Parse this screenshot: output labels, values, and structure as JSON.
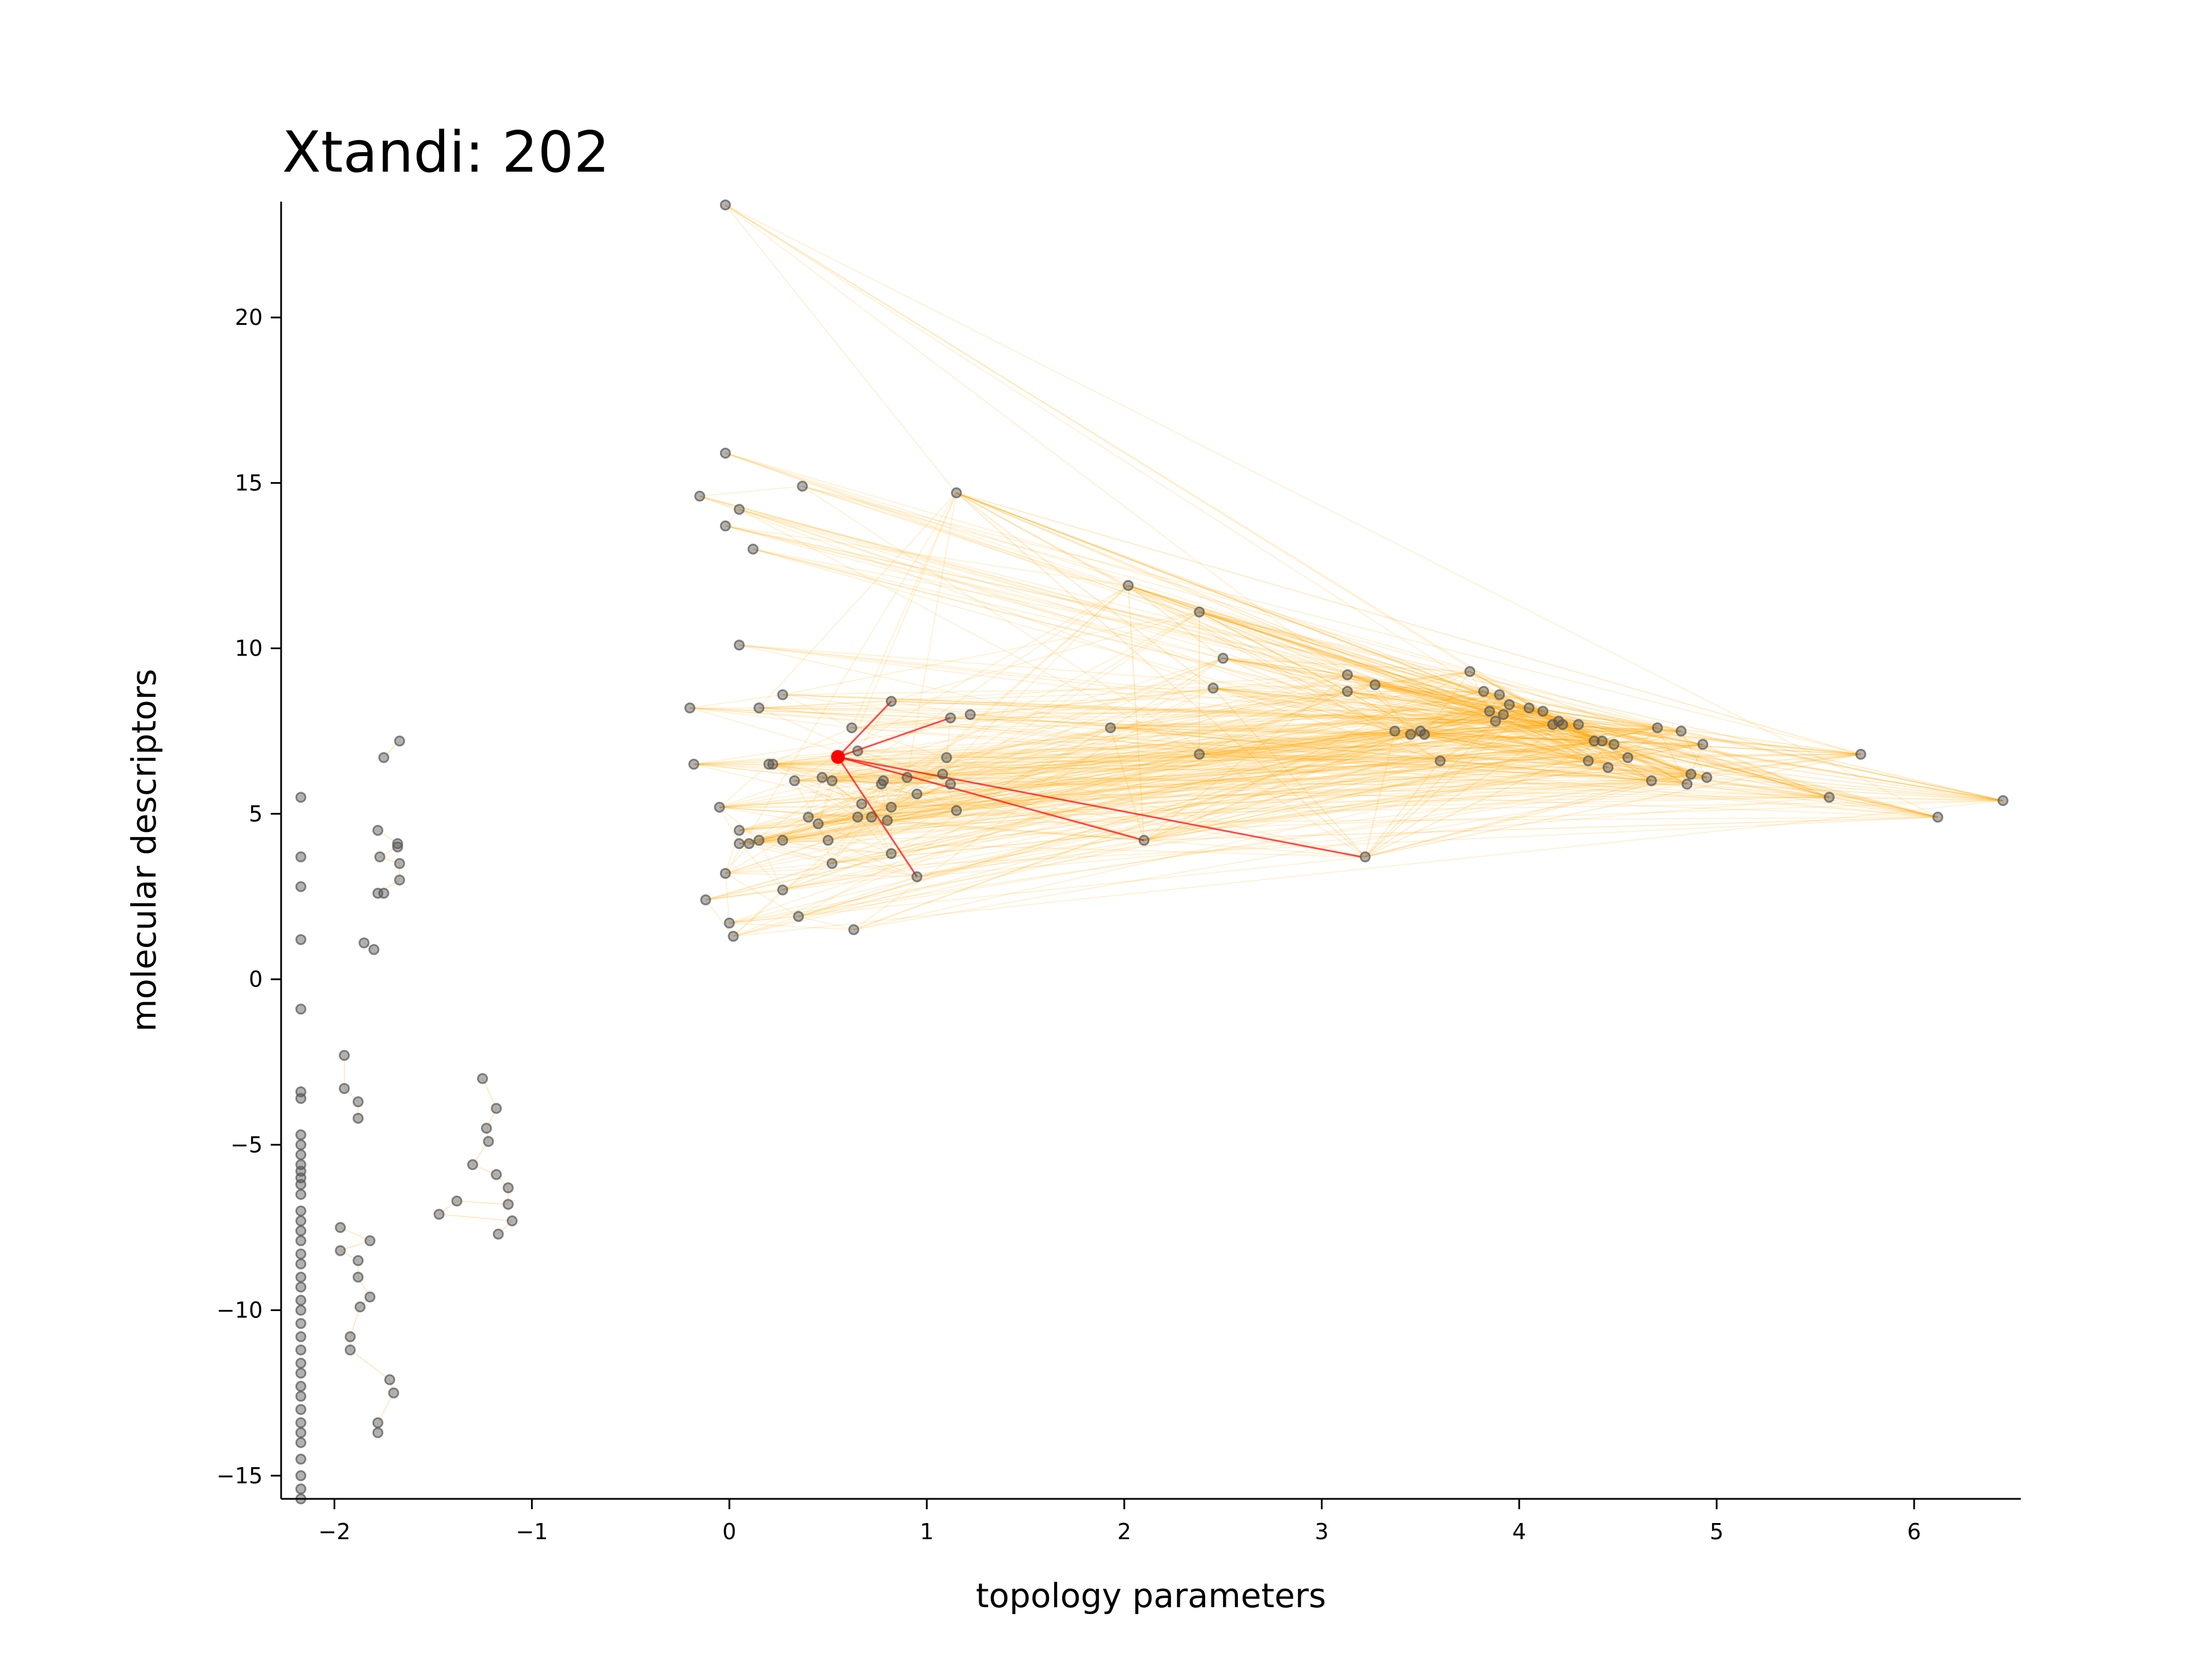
{
  "chart_data": {
    "type": "scatter",
    "title": "Xtandi: 202",
    "xlabel": "topology parameters",
    "ylabel": "molecular descriptors",
    "xlim": [
      -2.27,
      6.54
    ],
    "ylim": [
      -15.7,
      23.5
    ],
    "xticks": [
      -2,
      -1,
      0,
      1,
      2,
      3,
      4,
      5,
      6
    ],
    "yticks": [
      -15,
      -10,
      -5,
      0,
      5,
      10,
      15,
      20
    ],
    "xtick_labels": [
      "−2",
      "−1",
      "0",
      "1",
      "2",
      "3",
      "4",
      "5",
      "6"
    ],
    "ytick_labels": [
      "−15",
      "−10",
      "−5",
      "0",
      "5",
      "10",
      "15",
      "20"
    ],
    "grid": false,
    "colors": {
      "points": "#555555",
      "edges": "#ffa500",
      "highlight": "#ff0000"
    },
    "highlight": {
      "x": 0.55,
      "y": 6.72,
      "neighbors": [
        [
          0.82,
          8.4
        ],
        [
          1.12,
          7.9
        ],
        [
          0.95,
          3.1
        ],
        [
          2.1,
          4.2
        ],
        [
          3.2,
          3.7
        ]
      ]
    },
    "cluster_a": [
      [
        -0.02,
        23.4
      ],
      [
        -0.02,
        15.9
      ],
      [
        -0.15,
        14.6
      ],
      [
        0.05,
        14.2
      ],
      [
        0.37,
        14.9
      ],
      [
        -0.02,
        13.7
      ],
      [
        0.12,
        13.0
      ],
      [
        0.05,
        10.1
      ],
      [
        -0.2,
        8.2
      ],
      [
        0.15,
        8.2
      ],
      [
        0.27,
        8.6
      ],
      [
        -0.18,
        6.5
      ],
      [
        0.2,
        6.5
      ],
      [
        0.22,
        6.5
      ],
      [
        0.33,
        6.0
      ],
      [
        0.47,
        6.1
      ],
      [
        0.52,
        6.0
      ],
      [
        0.65,
        6.9
      ],
      [
        0.62,
        7.6
      ],
      [
        0.82,
        8.4
      ],
      [
        1.12,
        7.9
      ],
      [
        1.22,
        8.0
      ],
      [
        1.1,
        6.7
      ],
      [
        1.08,
        6.2
      ],
      [
        1.12,
        5.9
      ],
      [
        1.15,
        5.1
      ],
      [
        0.95,
        5.6
      ],
      [
        0.9,
        6.1
      ],
      [
        0.78,
        6.0
      ],
      [
        0.77,
        5.9
      ],
      [
        0.82,
        5.2
      ],
      [
        0.8,
        4.8
      ],
      [
        0.72,
        4.9
      ],
      [
        0.67,
        5.3
      ],
      [
        0.65,
        4.9
      ],
      [
        0.4,
        4.9
      ],
      [
        0.45,
        4.7
      ],
      [
        0.5,
        4.2
      ],
      [
        0.52,
        3.5
      ],
      [
        0.27,
        4.2
      ],
      [
        0.15,
        4.2
      ],
      [
        0.1,
        4.1
      ],
      [
        0.05,
        4.1
      ],
      [
        0.05,
        4.5
      ],
      [
        -0.05,
        5.2
      ],
      [
        -0.02,
        3.2
      ],
      [
        0.27,
        2.7
      ],
      [
        0.35,
        1.9
      ],
      [
        -0.12,
        2.4
      ],
      [
        0.0,
        1.7
      ],
      [
        0.02,
        1.3
      ],
      [
        0.63,
        1.5
      ],
      [
        0.82,
        3.8
      ],
      [
        0.95,
        3.1
      ]
    ],
    "cluster_b": [
      [
        1.15,
        14.7
      ],
      [
        2.02,
        11.9
      ],
      [
        2.38,
        11.1
      ],
      [
        2.5,
        9.7
      ],
      [
        2.45,
        8.8
      ],
      [
        1.93,
        7.6
      ],
      [
        2.38,
        6.8
      ],
      [
        2.1,
        4.2
      ],
      [
        3.22,
        3.7
      ],
      [
        3.13,
        9.2
      ],
      [
        3.13,
        8.7
      ],
      [
        3.27,
        8.9
      ],
      [
        3.37,
        7.5
      ],
      [
        3.45,
        7.4
      ],
      [
        3.5,
        7.5
      ],
      [
        3.52,
        7.4
      ],
      [
        3.6,
        6.6
      ],
      [
        3.75,
        9.3
      ],
      [
        3.82,
        8.7
      ],
      [
        3.85,
        8.1
      ],
      [
        3.88,
        7.8
      ],
      [
        3.9,
        8.6
      ],
      [
        3.92,
        8.0
      ],
      [
        3.95,
        8.3
      ],
      [
        4.05,
        8.2
      ],
      [
        4.12,
        8.1
      ],
      [
        4.17,
        7.7
      ],
      [
        4.2,
        7.8
      ],
      [
        4.22,
        7.7
      ],
      [
        4.3,
        7.7
      ],
      [
        4.35,
        6.6
      ],
      [
        4.38,
        7.2
      ],
      [
        4.42,
        7.2
      ],
      [
        4.45,
        6.4
      ],
      [
        4.48,
        7.1
      ],
      [
        4.55,
        6.7
      ],
      [
        4.67,
        6.0
      ],
      [
        4.7,
        7.6
      ],
      [
        4.82,
        7.5
      ],
      [
        4.85,
        5.9
      ],
      [
        4.87,
        6.2
      ],
      [
        4.93,
        7.1
      ],
      [
        4.95,
        6.1
      ],
      [
        5.57,
        5.5
      ],
      [
        5.73,
        6.8
      ],
      [
        6.12,
        4.9
      ],
      [
        6.45,
        5.4
      ]
    ],
    "cluster_c": [
      [
        -2.17,
        5.5
      ],
      [
        -2.17,
        3.7
      ],
      [
        -2.17,
        2.8
      ],
      [
        -2.17,
        1.2
      ],
      [
        -2.17,
        -0.9
      ],
      [
        -2.17,
        -3.4
      ],
      [
        -2.17,
        -3.6
      ],
      [
        -2.17,
        -4.7
      ],
      [
        -2.17,
        -5.0
      ],
      [
        -2.17,
        -5.3
      ],
      [
        -2.17,
        -5.6
      ],
      [
        -2.17,
        -5.8
      ],
      [
        -2.17,
        -6.0
      ],
      [
        -2.17,
        -6.2
      ],
      [
        -2.17,
        -6.5
      ],
      [
        -2.17,
        -7.0
      ],
      [
        -2.17,
        -7.3
      ],
      [
        -2.17,
        -7.6
      ],
      [
        -2.17,
        -7.9
      ],
      [
        -2.17,
        -8.3
      ],
      [
        -2.17,
        -8.6
      ],
      [
        -2.17,
        -9.0
      ],
      [
        -2.17,
        -9.3
      ],
      [
        -2.17,
        -9.7
      ],
      [
        -2.17,
        -10.0
      ],
      [
        -2.17,
        -10.4
      ],
      [
        -2.17,
        -10.8
      ],
      [
        -2.17,
        -11.2
      ],
      [
        -2.17,
        -11.6
      ],
      [
        -2.17,
        -11.9
      ],
      [
        -2.17,
        -12.3
      ],
      [
        -2.17,
        -12.6
      ],
      [
        -2.17,
        -13.0
      ],
      [
        -2.17,
        -13.4
      ],
      [
        -2.17,
        -13.7
      ],
      [
        -2.17,
        -14.0
      ],
      [
        -2.17,
        -14.5
      ],
      [
        -2.17,
        -15.0
      ],
      [
        -2.17,
        -15.4
      ],
      [
        -2.17,
        -15.7
      ]
    ],
    "cluster_d": [
      [
        -1.75,
        6.7
      ],
      [
        -1.67,
        7.2
      ],
      [
        -1.78,
        4.5
      ],
      [
        -1.68,
        4.1
      ],
      [
        -1.68,
        4.0
      ],
      [
        -1.77,
        3.7
      ],
      [
        -1.67,
        3.5
      ],
      [
        -1.67,
        3.0
      ],
      [
        -1.78,
        2.6
      ],
      [
        -1.75,
        2.6
      ],
      [
        -1.85,
        1.1
      ],
      [
        -1.8,
        0.9
      ],
      [
        -1.95,
        -2.3
      ],
      [
        -1.95,
        -3.3
      ],
      [
        -1.88,
        -3.7
      ],
      [
        -1.88,
        -4.2
      ],
      [
        -1.97,
        -7.5
      ],
      [
        -1.82,
        -7.9
      ],
      [
        -1.97,
        -8.2
      ],
      [
        -1.88,
        -8.5
      ],
      [
        -1.88,
        -9.0
      ],
      [
        -1.82,
        -9.6
      ],
      [
        -1.87,
        -9.9
      ],
      [
        -1.92,
        -10.8
      ],
      [
        -1.92,
        -11.2
      ],
      [
        -1.72,
        -12.1
      ],
      [
        -1.7,
        -12.5
      ],
      [
        -1.78,
        -13.4
      ],
      [
        -1.78,
        -13.7
      ]
    ],
    "cluster_e": [
      [
        -1.25,
        -3.0
      ],
      [
        -1.18,
        -3.9
      ],
      [
        -1.23,
        -4.5
      ],
      [
        -1.22,
        -4.9
      ],
      [
        -1.3,
        -5.6
      ],
      [
        -1.18,
        -5.9
      ],
      [
        -1.12,
        -6.3
      ],
      [
        -1.12,
        -6.8
      ],
      [
        -1.38,
        -6.7
      ],
      [
        -1.47,
        -7.1
      ],
      [
        -1.1,
        -7.3
      ],
      [
        -1.17,
        -7.7
      ]
    ]
  }
}
